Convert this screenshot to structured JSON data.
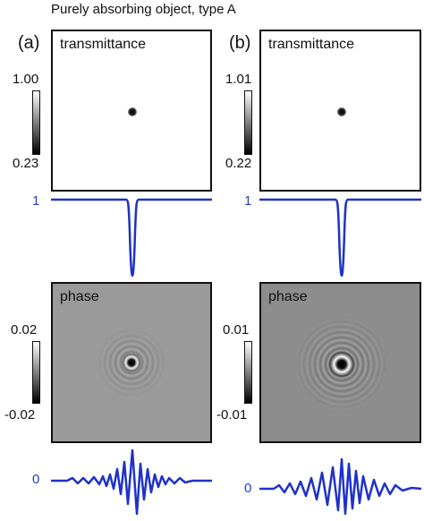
{
  "title": "Purely absorbing object, type A",
  "panels": {
    "a": {
      "label": "(a)",
      "transmittance": {
        "label": "transmittance",
        "colorbar_max": "1.00",
        "colorbar_min": "0.23",
        "profile_label": "1"
      },
      "phase": {
        "label": "phase",
        "colorbar_max": "0.02",
        "colorbar_min": "-0.02",
        "profile_label": "0"
      }
    },
    "b": {
      "label": "(b)",
      "transmittance": {
        "label": "transmittance",
        "colorbar_max": "1.01",
        "colorbar_min": "0.22",
        "profile_label": "1"
      },
      "phase": {
        "label": "phase",
        "colorbar_max": "0.01",
        "colorbar_min": "-0.01",
        "profile_label": "0"
      }
    }
  },
  "colors": {
    "profile_line": "#1f32c8",
    "phase_background_a": "#9a9a9a",
    "phase_background_b": "#8d8d8d",
    "frame": "#111111"
  }
}
